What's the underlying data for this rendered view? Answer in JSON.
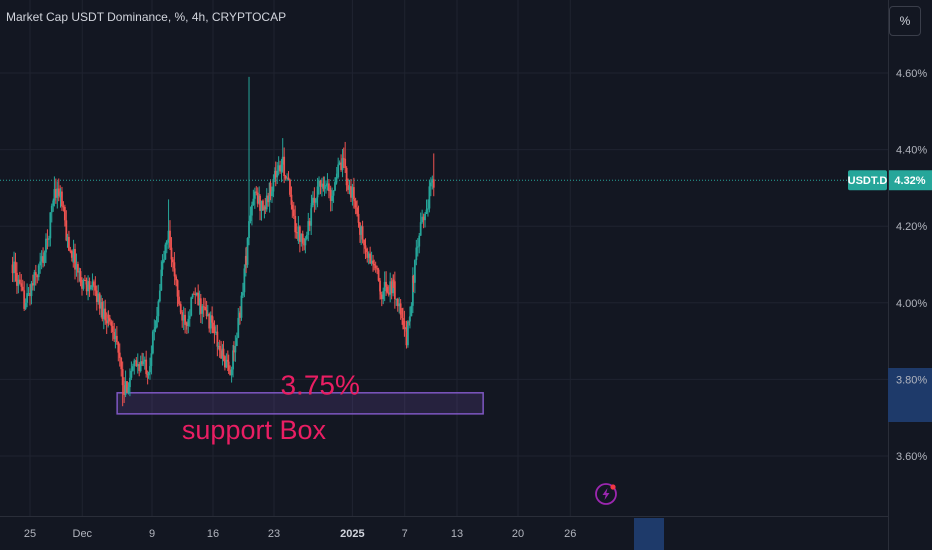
{
  "header": {
    "title": "Market Cap USDT Dominance, %, 4h, CRYPTOCAP",
    "scale_button": "%"
  },
  "colors": {
    "background": "#131722",
    "up": "#26a69a",
    "down": "#ef5350",
    "box": "#7e57c2",
    "annotation": "#e91e63",
    "price_tag": "#26a69a",
    "highlight_axis": "#1e3a6a"
  },
  "icons": [
    "lightning-icon"
  ],
  "chart_data": {
    "type": "candlestick",
    "symbol": "USDT.D",
    "last_price_label": "4.32%",
    "last_price": 4.32,
    "ylim": [
      3.5,
      4.72
    ],
    "y_ticks": [
      {
        "value": 4.6,
        "label": "4.60%"
      },
      {
        "value": 4.4,
        "label": "4.40%"
      },
      {
        "value": 4.2,
        "label": "4.20%"
      },
      {
        "value": 4.0,
        "label": "4.00%"
      },
      {
        "value": 3.8,
        "label": "3.80%"
      },
      {
        "value": 3.6,
        "label": "3.60%"
      }
    ],
    "x_ticks": [
      {
        "day": 0,
        "label": "25"
      },
      {
        "day": 6,
        "label": "Dec"
      },
      {
        "day": 14,
        "label": "9"
      },
      {
        "day": 21,
        "label": "16"
      },
      {
        "day": 28,
        "label": "23"
      },
      {
        "day": 37,
        "label": "2025",
        "bold": true
      },
      {
        "day": 43,
        "label": "7"
      },
      {
        "day": 49,
        "label": "13",
        "highlight": true
      },
      {
        "day": 56,
        "label": "20"
      },
      {
        "day": 62,
        "label": "26"
      }
    ],
    "x_range_days": [
      -2.2,
      67.5
    ],
    "series_close": [
      [
        -2.0,
        4.1
      ],
      [
        -1.0,
        4.02
      ],
      [
        -0.5,
        4.0
      ],
      [
        0.5,
        4.06
      ],
      [
        1.5,
        4.12
      ],
      [
        2.0,
        4.16
      ],
      [
        2.8,
        4.3
      ],
      [
        3.5,
        4.28
      ],
      [
        4.3,
        4.16
      ],
      [
        5.0,
        4.12
      ],
      [
        5.8,
        4.06
      ],
      [
        6.5,
        4.05
      ],
      [
        7.5,
        4.03
      ],
      [
        8.3,
        3.98
      ],
      [
        9.0,
        3.96
      ],
      [
        9.8,
        3.92
      ],
      [
        10.3,
        3.84
      ],
      [
        10.8,
        3.76
      ],
      [
        11.3,
        3.8
      ],
      [
        12.2,
        3.84
      ],
      [
        13.0,
        3.84
      ],
      [
        13.6,
        3.83
      ],
      [
        14.4,
        3.95
      ],
      [
        15.2,
        4.1
      ],
      [
        15.9,
        4.18
      ],
      [
        16.6,
        4.07
      ],
      [
        17.3,
        3.97
      ],
      [
        18.0,
        3.96
      ],
      [
        18.8,
        4.02
      ],
      [
        19.6,
        3.99
      ],
      [
        20.4,
        3.96
      ],
      [
        21.0,
        3.94
      ],
      [
        21.6,
        3.88
      ],
      [
        22.2,
        3.86
      ],
      [
        22.8,
        3.82
      ],
      [
        23.4,
        3.86
      ],
      [
        24.1,
        3.98
      ],
      [
        24.8,
        4.12
      ],
      [
        25.3,
        4.24
      ],
      [
        25.8,
        4.28
      ],
      [
        26.4,
        4.26
      ],
      [
        27.0,
        4.25
      ],
      [
        27.6,
        4.3
      ],
      [
        28.2,
        4.34
      ],
      [
        29.0,
        4.36
      ],
      [
        29.5,
        4.33
      ],
      [
        30.1,
        4.23
      ],
      [
        30.8,
        4.18
      ],
      [
        31.6,
        4.17
      ],
      [
        32.3,
        4.24
      ],
      [
        33.0,
        4.3
      ],
      [
        33.8,
        4.32
      ],
      [
        34.5,
        4.28
      ],
      [
        35.2,
        4.34
      ],
      [
        36.0,
        4.36
      ],
      [
        36.5,
        4.31
      ],
      [
        37.2,
        4.27
      ],
      [
        38.0,
        4.18
      ],
      [
        38.7,
        4.12
      ],
      [
        39.5,
        4.1
      ],
      [
        40.2,
        4.03
      ],
      [
        41.0,
        4.04
      ],
      [
        41.7,
        4.04
      ],
      [
        42.2,
        4.0
      ],
      [
        42.8,
        3.94
      ],
      [
        43.2,
        3.91
      ],
      [
        43.6,
        3.97
      ],
      [
        44.0,
        4.07
      ],
      [
        44.5,
        4.15
      ],
      [
        45.0,
        4.21
      ],
      [
        45.5,
        4.25
      ],
      [
        46.0,
        4.3
      ],
      [
        46.4,
        4.32
      ]
    ],
    "support_box": {
      "day_start": 10.0,
      "day_end": 52.0,
      "low": 3.71,
      "high": 3.765
    },
    "annotations": [
      {
        "text": "3.75%",
        "day": 33.3,
        "price": 3.76
      },
      {
        "text": "support Box",
        "day": 25.7,
        "price": 3.645
      }
    ]
  }
}
